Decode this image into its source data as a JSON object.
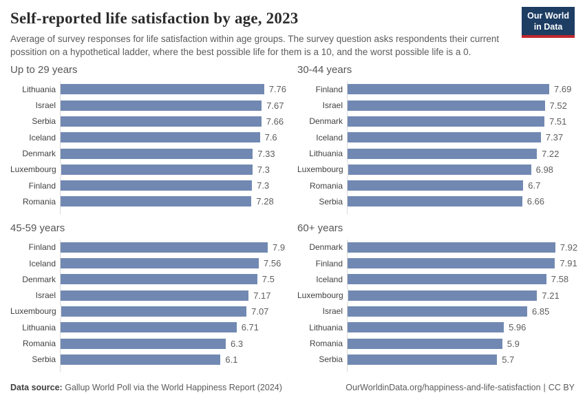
{
  "header": {
    "title": "Self-reported life satisfaction by age, 2023",
    "subtitle": "Average of survey responses for life satisfaction within age groups. The survey question asks respondents their current possition on a hypothetical ladder, where the best possible life for them is a 10, and the worst possible life is a 0."
  },
  "logo": {
    "line1": "Our World",
    "line2": "in Data"
  },
  "chart_data": [
    {
      "type": "bar",
      "orientation": "horizontal",
      "title": "Up to 29 years",
      "categories": [
        "Lithuania",
        "Israel",
        "Serbia",
        "Iceland",
        "Denmark",
        "Luxembourg",
        "Finland",
        "Romania"
      ],
      "values": [
        7.76,
        7.67,
        7.66,
        7.6,
        7.33,
        7.3,
        7.3,
        7.28
      ],
      "xlim": [
        0,
        8
      ],
      "value_labels": true,
      "grid": false,
      "legend": false
    },
    {
      "type": "bar",
      "orientation": "horizontal",
      "title": "30-44 years",
      "categories": [
        "Finland",
        "Israel",
        "Denmark",
        "Iceland",
        "Lithuania",
        "Luxembourg",
        "Romania",
        "Serbia"
      ],
      "values": [
        7.69,
        7.52,
        7.51,
        7.37,
        7.22,
        6.98,
        6.7,
        6.66
      ],
      "xlim": [
        0,
        8
      ],
      "value_labels": true,
      "grid": false,
      "legend": false
    },
    {
      "type": "bar",
      "orientation": "horizontal",
      "title": "45-59 years",
      "categories": [
        "Finland",
        "Iceland",
        "Denmark",
        "Israel",
        "Luxembourg",
        "Lithuania",
        "Romania",
        "Serbia"
      ],
      "values": [
        7.9,
        7.56,
        7.5,
        7.17,
        7.07,
        6.71,
        6.3,
        6.1
      ],
      "xlim": [
        0,
        8
      ],
      "value_labels": true,
      "grid": false,
      "legend": false
    },
    {
      "type": "bar",
      "orientation": "horizontal",
      "title": "60+ years",
      "categories": [
        "Denmark",
        "Finland",
        "Iceland",
        "Luxembourg",
        "Israel",
        "Lithuania",
        "Romania",
        "Serbia"
      ],
      "values": [
        7.92,
        7.91,
        7.58,
        7.21,
        6.85,
        5.96,
        5.9,
        5.7
      ],
      "xlim": [
        0,
        8
      ],
      "value_labels": true,
      "grid": false,
      "legend": false
    }
  ],
  "footer": {
    "data_source_label": "Data source:",
    "data_source_text": "Gallup World Poll via the World Happiness Report (2024)",
    "link": "OurWorldinData.org/happiness-and-life-satisfaction",
    "separator": "|",
    "license": "CC BY"
  },
  "colors": {
    "bar": "#7189b2",
    "axis": "#d9d9d9",
    "logo-navy": "#1d3d63",
    "logo-red": "#c0282d",
    "title-text": "#2b2b2b",
    "muted-text": "#5b5b5b"
  }
}
